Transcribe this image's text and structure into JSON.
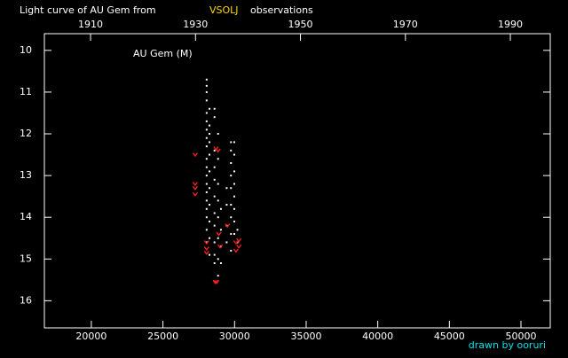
{
  "chart_data": {
    "type": "scatter",
    "title": "Light curve of AU Gem from",
    "title_source": "VSOLJ",
    "title_suffix": "observations",
    "annotation": "AU Gem (M)",
    "credit": "drawn by ooruri",
    "xlim": [
      16720,
      52045
    ],
    "xticks": [
      20000,
      25000,
      30000,
      35000,
      40000,
      45000,
      50000
    ],
    "x2lim": [
      1901.2,
      1997.6
    ],
    "x2ticks": [
      1910,
      1930,
      1950,
      1970,
      1990
    ],
    "ylim": [
      9.6,
      16.65
    ],
    "y_inverted": true,
    "yticks": [
      10,
      11,
      12,
      13,
      14,
      15,
      16
    ],
    "series": [
      {
        "color": "#ffffff",
        "marker": "dot",
        "x": [
          28050,
          28050,
          28050,
          28050,
          28050,
          28050,
          28050,
          28050,
          28050,
          28050,
          28050,
          28050,
          28050,
          28050,
          28050,
          28050,
          28050,
          28050,
          28050,
          28250,
          28250,
          28250,
          28250,
          28250,
          28250,
          28250,
          28250,
          28250,
          28250,
          28250,
          28600,
          28600,
          28600,
          28600,
          28600,
          28600,
          28600,
          28600,
          28600,
          28600,
          28600,
          28850,
          28850,
          28850,
          28850,
          28850,
          28850,
          28850,
          28850,
          29050,
          29050,
          29050,
          29050,
          29450,
          29450,
          29450,
          29450,
          29750,
          29750,
          29750,
          29750,
          29750,
          29750,
          29750,
          29750,
          29750,
          29980,
          29980,
          29980,
          29980,
          29980,
          29980,
          29980,
          29980,
          30200,
          30200
        ],
        "values": [
          10.7,
          10.85,
          11.0,
          11.2,
          11.5,
          11.7,
          11.9,
          12.1,
          12.3,
          12.6,
          12.8,
          13.0,
          13.2,
          13.4,
          13.6,
          13.8,
          14.0,
          14.3,
          14.6,
          11.4,
          11.8,
          12.0,
          12.2,
          12.5,
          12.9,
          13.3,
          13.7,
          14.1,
          14.5,
          14.9,
          11.4,
          11.6,
          12.4,
          12.8,
          13.1,
          13.5,
          13.9,
          14.2,
          14.6,
          14.9,
          15.1,
          12.0,
          12.6,
          13.2,
          13.6,
          14.0,
          14.5,
          15.0,
          15.4,
          13.8,
          14.3,
          14.7,
          15.1,
          13.3,
          13.7,
          14.2,
          14.6,
          12.2,
          12.4,
          12.7,
          13.0,
          13.3,
          13.7,
          14.0,
          14.4,
          14.8,
          12.2,
          12.5,
          12.9,
          13.2,
          13.5,
          13.8,
          14.1,
          14.4,
          14.3,
          14.6
        ]
      },
      {
        "color": "#ff2020",
        "marker": "fainter",
        "x": [
          27250,
          27250,
          27250,
          27250,
          28050,
          28050,
          28050,
          28700,
          28850,
          28650,
          28750,
          29000,
          28900,
          29500,
          30300,
          30300,
          30100,
          30100
        ],
        "values": [
          12.5,
          13.2,
          13.3,
          13.45,
          14.6,
          14.75,
          14.85,
          12.35,
          12.4,
          15.55,
          15.55,
          14.7,
          14.4,
          14.2,
          14.55,
          14.7,
          14.8,
          14.6
        ]
      }
    ]
  }
}
